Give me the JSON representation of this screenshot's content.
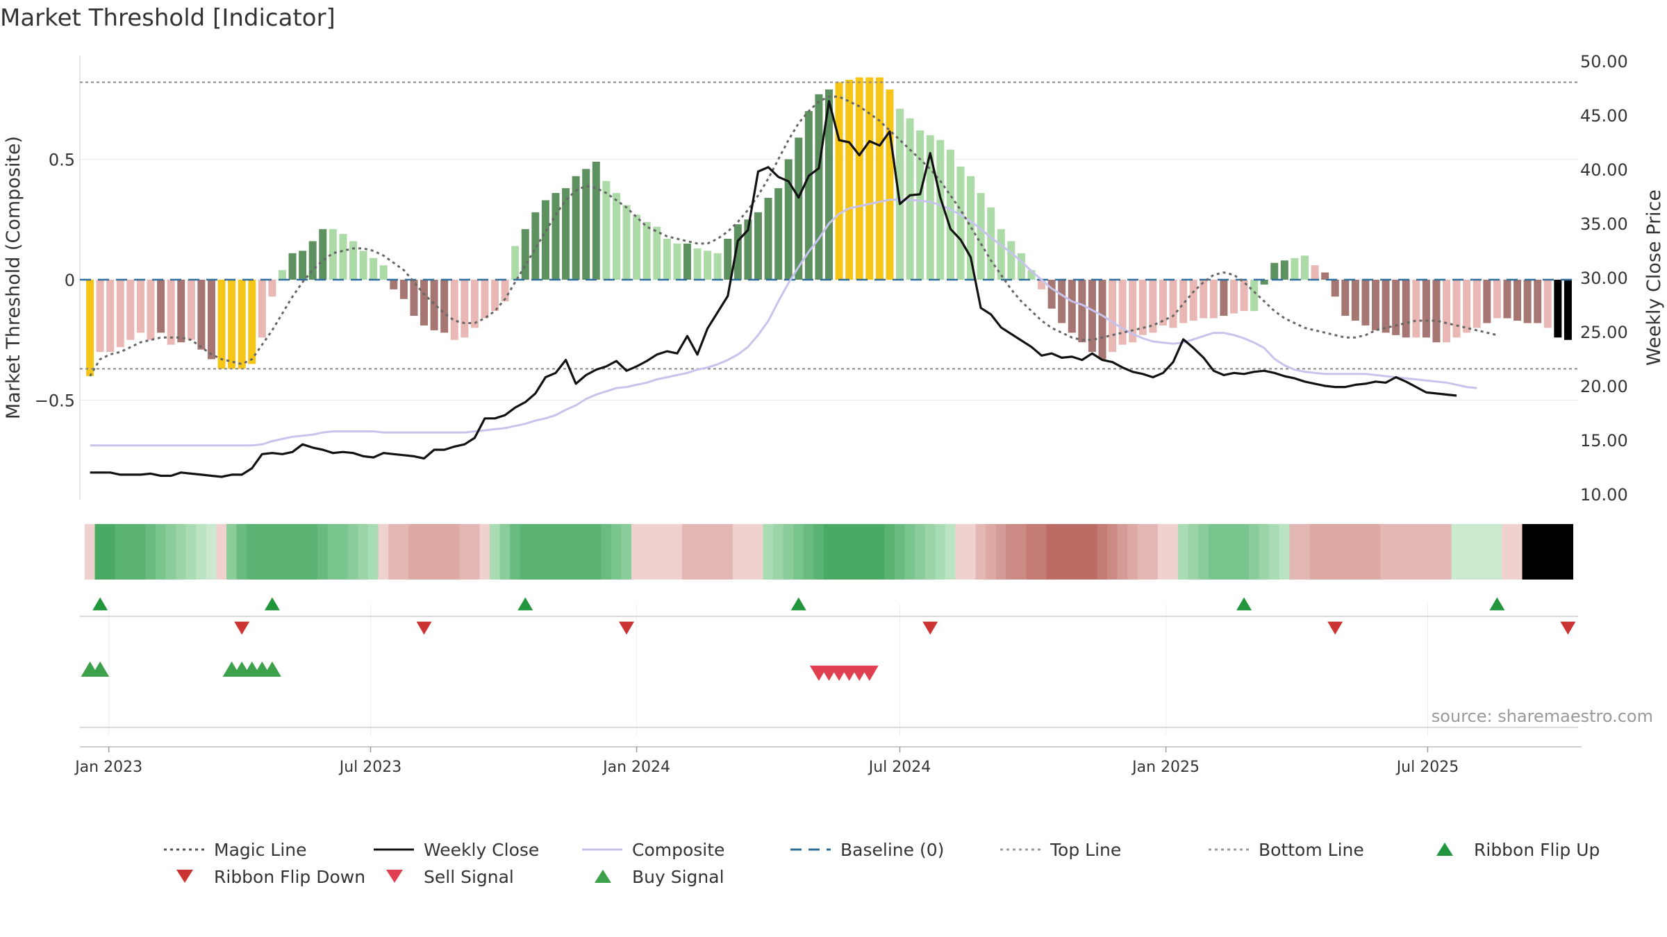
{
  "chart_data": {
    "type": "bar",
    "title": "Market Threshold [Indicator]",
    "ylabel": "Market Threshold (Composite)",
    "y2label": "Weekly Close Price",
    "ylim": [
      -0.93,
      0.93
    ],
    "y2lim": [
      8.0,
      52.0
    ],
    "yticks": [
      -0.5,
      0,
      0.5
    ],
    "ytick_labels": [
      "−0.5",
      "0",
      "0.5"
    ],
    "y2ticks": [
      10,
      15,
      20,
      25,
      30,
      35,
      40,
      45,
      50
    ],
    "y2tick_labels": [
      "10.00",
      "15.00",
      "20.00",
      "25.00",
      "30.00",
      "35.00",
      "40.00",
      "45.00",
      "50.00"
    ],
    "x_start": "2022-12-12",
    "x_end": "2025-10-13",
    "xticks": [
      "2023-01-01",
      "2023-07-01",
      "2024-01-01",
      "2024-07-01",
      "2025-01-01",
      "2025-07-01"
    ],
    "xtick_labels": [
      "Jan 2023",
      "Jul 2023",
      "Jan 2024",
      "Jul 2024",
      "Jan 2025",
      "Jul 2025"
    ],
    "top_line": 0.82,
    "bottom_line": -0.37,
    "baseline": 0,
    "grid": true,
    "legend_position": "bottom",
    "source_note": "source: sharemaestro.com",
    "weeks": [
      "2022-12-19",
      "2022-12-26",
      "2023-01-02",
      "2023-01-09",
      "2023-01-16",
      "2023-01-23",
      "2023-01-30",
      "2023-02-06",
      "2023-02-13",
      "2023-02-20",
      "2023-02-27",
      "2023-03-06",
      "2023-03-13",
      "2023-03-20",
      "2023-03-27",
      "2023-04-03",
      "2023-04-10",
      "2023-04-17",
      "2023-04-24",
      "2023-05-01",
      "2023-05-08",
      "2023-05-15",
      "2023-05-22",
      "2023-05-29",
      "2023-06-05",
      "2023-06-12",
      "2023-06-19",
      "2023-06-26",
      "2023-07-03",
      "2023-07-10",
      "2023-07-17",
      "2023-07-24",
      "2023-07-31",
      "2023-08-07",
      "2023-08-14",
      "2023-08-21",
      "2023-08-28",
      "2023-09-04",
      "2023-09-11",
      "2023-09-18",
      "2023-09-25",
      "2023-10-02",
      "2023-10-09",
      "2023-10-16",
      "2023-10-23",
      "2023-10-30",
      "2023-11-06",
      "2023-11-13",
      "2023-11-20",
      "2023-11-27",
      "2023-12-04",
      "2023-12-11",
      "2023-12-18",
      "2023-12-25",
      "2024-01-01",
      "2024-01-08",
      "2024-01-15",
      "2024-01-22",
      "2024-01-29",
      "2024-02-05",
      "2024-02-12",
      "2024-02-19",
      "2024-02-26",
      "2024-03-04",
      "2024-03-11",
      "2024-03-18",
      "2024-03-25",
      "2024-04-01",
      "2024-04-08",
      "2024-04-15",
      "2024-04-22",
      "2024-04-29",
      "2024-05-06",
      "2024-05-13",
      "2024-05-20",
      "2024-05-27",
      "2024-06-03",
      "2024-06-10",
      "2024-06-17",
      "2024-06-24",
      "2024-07-01",
      "2024-07-08",
      "2024-07-15",
      "2024-07-22",
      "2024-07-29",
      "2024-08-05",
      "2024-08-12",
      "2024-08-19",
      "2024-08-26",
      "2024-09-02",
      "2024-09-09",
      "2024-09-16",
      "2024-09-23",
      "2024-09-30",
      "2024-10-07",
      "2024-10-14",
      "2024-10-21",
      "2024-10-28",
      "2024-11-04",
      "2024-11-11",
      "2024-11-18",
      "2024-11-25",
      "2024-12-02",
      "2024-12-09",
      "2024-12-16",
      "2024-12-23",
      "2024-12-30",
      "2025-01-06",
      "2025-01-13",
      "2025-01-20",
      "2025-01-27",
      "2025-02-03",
      "2025-02-10",
      "2025-02-17",
      "2025-02-24",
      "2025-03-03",
      "2025-03-10",
      "2025-03-17",
      "2025-03-24",
      "2025-03-31",
      "2025-04-07",
      "2025-04-14",
      "2025-04-21",
      "2025-04-28",
      "2025-05-05",
      "2025-05-12",
      "2025-05-19",
      "2025-05-26",
      "2025-06-02",
      "2025-06-09",
      "2025-06-16",
      "2025-06-23",
      "2025-06-30",
      "2025-07-07",
      "2025-07-14",
      "2025-07-21",
      "2025-07-28",
      "2025-08-04",
      "2025-08-11",
      "2025-08-18",
      "2025-08-25",
      "2025-09-01",
      "2025-09-08",
      "2025-09-15",
      "2025-09-22",
      "2025-09-29",
      "2025-10-06"
    ],
    "composite": [
      -0.4,
      -0.3,
      -0.3,
      -0.28,
      -0.25,
      -0.22,
      -0.25,
      -0.22,
      -0.27,
      -0.26,
      -0.25,
      -0.29,
      -0.33,
      -0.37,
      -0.37,
      -0.37,
      -0.35,
      -0.24,
      -0.07,
      0.04,
      0.11,
      0.12,
      0.16,
      0.21,
      0.21,
      0.19,
      0.16,
      0.12,
      0.09,
      0.06,
      -0.04,
      -0.08,
      -0.15,
      -0.19,
      -0.21,
      -0.22,
      -0.25,
      -0.24,
      -0.2,
      -0.16,
      -0.13,
      -0.09,
      0.14,
      0.21,
      0.28,
      0.33,
      0.36,
      0.38,
      0.43,
      0.46,
      0.49,
      0.41,
      0.36,
      0.31,
      0.27,
      0.24,
      0.22,
      0.17,
      0.15,
      0.15,
      0.13,
      0.12,
      0.11,
      0.17,
      0.23,
      0.25,
      0.28,
      0.34,
      0.38,
      0.5,
      0.59,
      0.7,
      0.77,
      0.79,
      0.82,
      0.83,
      0.84,
      0.84,
      0.84,
      0.79,
      0.71,
      0.67,
      0.62,
      0.6,
      0.58,
      0.54,
      0.47,
      0.43,
      0.36,
      0.3,
      0.21,
      0.16,
      0.11,
      0.04,
      -0.04,
      -0.12,
      -0.18,
      -0.22,
      -0.26,
      -0.3,
      -0.33,
      -0.3,
      -0.27,
      -0.26,
      -0.23,
      -0.22,
      -0.19,
      -0.2,
      -0.18,
      -0.17,
      -0.16,
      -0.16,
      -0.15,
      -0.14,
      -0.13,
      -0.13,
      -0.02,
      0.07,
      0.08,
      0.09,
      0.1,
      0.06,
      0.03,
      -0.07,
      -0.15,
      -0.17,
      -0.19,
      -0.21,
      -0.22,
      -0.23,
      -0.24,
      -0.24,
      -0.24,
      -0.26,
      -0.26,
      -0.24,
      -0.22,
      -0.2,
      -0.18,
      -0.16,
      -0.16,
      -0.17,
      -0.18,
      -0.18,
      -0.2,
      -0.24,
      -0.25,
      -0.25
    ],
    "bar_colors": [
      "#f5c518",
      "#eab8b4",
      "#eab8b4",
      "#eab8b4",
      "#eab8b4",
      "#eab8b4",
      "#eab8b4",
      "#a67673",
      "#eab8b4",
      "#a67673",
      "#eab8b4",
      "#a67673",
      "#a67673",
      "#f5c518",
      "#f5c518",
      "#f5c518",
      "#f5c518",
      "#eab8b4",
      "#eab8b4",
      "#addba8",
      "#5e9160",
      "#5e9160",
      "#5e9160",
      "#5e9160",
      "#addba8",
      "#addba8",
      "#addba8",
      "#addba8",
      "#addba8",
      "#addba8",
      "#a67673",
      "#a67673",
      "#a67673",
      "#a67673",
      "#a67673",
      "#a67673",
      "#eab8b4",
      "#eab8b4",
      "#eab8b4",
      "#eab8b4",
      "#eab8b4",
      "#eab8b4",
      "#addba8",
      "#5e9160",
      "#5e9160",
      "#5e9160",
      "#5e9160",
      "#5e9160",
      "#5e9160",
      "#5e9160",
      "#5e9160",
      "#addba8",
      "#addba8",
      "#addba8",
      "#addba8",
      "#addba8",
      "#addba8",
      "#addba8",
      "#addba8",
      "#5e9160",
      "#addba8",
      "#addba8",
      "#addba8",
      "#5e9160",
      "#5e9160",
      "#5e9160",
      "#5e9160",
      "#5e9160",
      "#5e9160",
      "#5e9160",
      "#5e9160",
      "#5e9160",
      "#5e9160",
      "#5e9160",
      "#f5c518",
      "#f5c518",
      "#f5c518",
      "#f5c518",
      "#f5c518",
      "#f5c518",
      "#addba8",
      "#addba8",
      "#addba8",
      "#addba8",
      "#addba8",
      "#addba8",
      "#addba8",
      "#addba8",
      "#addba8",
      "#addba8",
      "#addba8",
      "#addba8",
      "#addba8",
      "#addba8",
      "#eab8b4",
      "#a67673",
      "#a67673",
      "#a67673",
      "#a67673",
      "#a67673",
      "#a67673",
      "#eab8b4",
      "#eab8b4",
      "#eab8b4",
      "#eab8b4",
      "#eab8b4",
      "#eab8b4",
      "#eab8b4",
      "#eab8b4",
      "#eab8b4",
      "#eab8b4",
      "#eab8b4",
      "#a67673",
      "#eab8b4",
      "#eab8b4",
      "#addba8",
      "#5e9160",
      "#5e9160",
      "#5e9160",
      "#addba8",
      "#addba8",
      "#eab8b4",
      "#a67673",
      "#a67673",
      "#a67673",
      "#a67673",
      "#a67673",
      "#a67673",
      "#a67673",
      "#a67673",
      "#a67673",
      "#eab8b4",
      "#a67673",
      "#a67673",
      "#eab8b4",
      "#eab8b4",
      "#eab8b4",
      "#eab8b4",
      "#a67673",
      "#eab8b4",
      "#a67673",
      "#a67673",
      "#a67673",
      "#a67673",
      "#eab8b4"
    ],
    "magic_line": [
      -0.4,
      -0.33,
      -0.31,
      -0.3,
      -0.28,
      -0.26,
      -0.25,
      -0.24,
      -0.24,
      -0.24,
      -0.25,
      -0.28,
      -0.31,
      -0.33,
      -0.34,
      -0.35,
      -0.33,
      -0.27,
      -0.21,
      -0.14,
      -0.07,
      -0.01,
      0.04,
      0.08,
      0.11,
      0.12,
      0.13,
      0.13,
      0.12,
      0.1,
      0.07,
      0.04,
      -0.01,
      -0.06,
      -0.1,
      -0.14,
      -0.17,
      -0.18,
      -0.18,
      -0.16,
      -0.13,
      -0.08,
      -0.01,
      0.06,
      0.13,
      0.2,
      0.27,
      0.33,
      0.37,
      0.39,
      0.38,
      0.36,
      0.33,
      0.3,
      0.26,
      0.22,
      0.2,
      0.18,
      0.17,
      0.16,
      0.15,
      0.15,
      0.17,
      0.2,
      0.24,
      0.29,
      0.35,
      0.42,
      0.5,
      0.58,
      0.65,
      0.7,
      0.74,
      0.76,
      0.76,
      0.74,
      0.72,
      0.69,
      0.66,
      0.62,
      0.58,
      0.54,
      0.5,
      0.46,
      0.41,
      0.35,
      0.29,
      0.22,
      0.15,
      0.08,
      0.02,
      -0.04,
      -0.09,
      -0.13,
      -0.17,
      -0.2,
      -0.22,
      -0.24,
      -0.25,
      -0.25,
      -0.24,
      -0.23,
      -0.22,
      -0.21,
      -0.2,
      -0.19,
      -0.17,
      -0.15,
      -0.1,
      -0.05,
      -0.01,
      0.02,
      0.03,
      0.02,
      -0.01,
      -0.05,
      -0.09,
      -0.13,
      -0.16,
      -0.18,
      -0.2,
      -0.21,
      -0.22,
      -0.23,
      -0.24,
      -0.24,
      -0.23,
      -0.21,
      -0.2,
      -0.19,
      -0.18,
      -0.17,
      -0.17,
      -0.17,
      -0.18,
      -0.19,
      -0.2,
      -0.21,
      -0.22,
      -0.23
    ],
    "composite_line": [
      14.5,
      14.5,
      14.5,
      14.5,
      14.5,
      14.5,
      14.5,
      14.5,
      14.5,
      14.5,
      14.5,
      14.5,
      14.5,
      14.5,
      14.5,
      14.5,
      14.5,
      14.6,
      14.9,
      15.1,
      15.3,
      15.4,
      15.5,
      15.7,
      15.8,
      15.8,
      15.8,
      15.8,
      15.8,
      15.7,
      15.7,
      15.7,
      15.7,
      15.7,
      15.7,
      15.7,
      15.7,
      15.7,
      15.8,
      15.9,
      16.0,
      16.1,
      16.3,
      16.5,
      16.8,
      17.0,
      17.3,
      17.8,
      18.2,
      18.8,
      19.2,
      19.5,
      19.8,
      19.9,
      20.1,
      20.3,
      20.6,
      20.8,
      21.0,
      21.2,
      21.5,
      21.7,
      22.0,
      22.4,
      22.9,
      23.6,
      24.7,
      26.0,
      27.8,
      29.5,
      31.0,
      32.4,
      33.6,
      35.0,
      35.9,
      36.4,
      36.6,
      36.8,
      37.0,
      37.2,
      37.2,
      37.2,
      37.1,
      37.0,
      36.7,
      36.3,
      35.8,
      35.2,
      34.5,
      33.7,
      33.0,
      32.3,
      31.5,
      30.6,
      29.8,
      29.0,
      28.4,
      27.8,
      27.5,
      27.0,
      26.5,
      25.9,
      25.3,
      24.8,
      24.4,
      24.1,
      24.0,
      23.9,
      24.0,
      24.3,
      24.6,
      24.9,
      24.9,
      24.7,
      24.4,
      24.0,
      23.5,
      22.5,
      21.9,
      21.5,
      21.3,
      21.2,
      21.1,
      21.1,
      21.1,
      21.1,
      21.1,
      21.0,
      20.9,
      20.8,
      20.7,
      20.6,
      20.5,
      20.4,
      20.3,
      20.1,
      19.9,
      19.8
    ],
    "weekly_close": [
      12.0,
      12.0,
      12.0,
      11.8,
      11.8,
      11.8,
      11.9,
      11.7,
      11.7,
      12.0,
      11.9,
      11.8,
      11.7,
      11.6,
      11.8,
      11.8,
      12.4,
      13.7,
      13.8,
      13.7,
      13.9,
      14.6,
      14.3,
      14.1,
      13.8,
      13.9,
      13.8,
      13.5,
      13.4,
      13.8,
      13.7,
      13.6,
      13.5,
      13.3,
      14.1,
      14.1,
      14.4,
      14.6,
      15.2,
      17.0,
      17.0,
      17.3,
      18.0,
      18.5,
      19.3,
      20.8,
      21.2,
      22.4,
      20.2,
      21.0,
      21.5,
      21.8,
      22.3,
      21.4,
      21.8,
      22.3,
      22.9,
      23.2,
      23.0,
      24.6,
      22.9,
      25.3,
      26.8,
      28.3,
      33.4,
      34.4,
      39.8,
      40.2,
      39.3,
      38.9,
      37.4,
      39.4,
      40.1,
      46.3,
      42.7,
      42.5,
      41.3,
      42.6,
      42.2,
      43.5,
      36.8,
      37.6,
      37.7,
      41.5,
      37.4,
      34.5,
      33.5,
      31.9,
      27.2,
      26.6,
      25.4,
      24.8,
      24.2,
      23.6,
      22.8,
      23.0,
      22.6,
      22.7,
      22.4,
      23.0,
      22.4,
      22.2,
      21.7,
      21.3,
      21.1,
      20.8,
      21.2,
      22.2,
      24.3,
      23.5,
      22.6,
      21.4,
      21.0,
      21.2,
      21.1,
      21.3,
      21.4,
      21.2,
      20.9,
      20.7,
      20.4,
      20.2,
      20.0,
      19.9,
      19.9,
      20.1,
      20.2,
      20.4,
      20.3,
      20.8,
      20.4,
      19.9,
      19.4,
      19.3,
      19.2,
      19.1
    ],
    "ribbon_colors": [
      "#efd2d0",
      "#4aaa63",
      "#4aaa63",
      "#5ab373",
      "#5ab373",
      "#5ab373",
      "#6abb80",
      "#7ac48d",
      "#8acc9a",
      "#9ad4a7",
      "#aadcb4",
      "#bae3c1",
      "#cae9ce",
      "#efd2d0",
      "#8acc9a",
      "#6abb80",
      "#5ab373",
      "#5ab373",
      "#5ab373",
      "#5ab373",
      "#5ab373",
      "#5ab373",
      "#5ab373",
      "#6abb80",
      "#7ac48d",
      "#7ac48d",
      "#8acc9a",
      "#9ad4a7",
      "#aadcb4",
      "#efd2d0",
      "#e3b8b4",
      "#e3b8b4",
      "#dca9a5",
      "#dca9a5",
      "#dca9a5",
      "#dca9a5",
      "#dca9a5",
      "#e3b8b4",
      "#e3b8b4",
      "#efd2d0",
      "#aadcb4",
      "#8acc9a",
      "#6abb80",
      "#5ab373",
      "#5ab373",
      "#5ab373",
      "#5ab373",
      "#5ab373",
      "#5ab373",
      "#5ab373",
      "#5ab373",
      "#6abb80",
      "#7ac48d",
      "#8acc9a",
      "#efd2d0",
      "#efd2d0",
      "#efd2d0",
      "#efd2d0",
      "#efd2d0",
      "#e3b8b4",
      "#e3b8b4",
      "#e3b8b4",
      "#e3b8b4",
      "#e3b8b4",
      "#efd2d0",
      "#efd2d0",
      "#efd2d0",
      "#aadcb4",
      "#9ad4a7",
      "#8acc9a",
      "#7ac48d",
      "#6abb80",
      "#5ab373",
      "#4aaa63",
      "#4aaa63",
      "#4aaa63",
      "#4aaa63",
      "#4aaa63",
      "#4aaa63",
      "#5ab373",
      "#6abb80",
      "#7ac48d",
      "#8acc9a",
      "#9ad4a7",
      "#aadcb4",
      "#bae3c1",
      "#efd2d0",
      "#efd2d0",
      "#e3b8b4",
      "#dca9a5",
      "#d49a95",
      "#cc8a85",
      "#cc8a85",
      "#c47a75",
      "#c47a75",
      "#bc6b65",
      "#bc6b65",
      "#bc6b65",
      "#bc6b65",
      "#bc6b65",
      "#c47a75",
      "#cc8a85",
      "#d49a95",
      "#dca9a5",
      "#e3b8b4",
      "#e3b8b4",
      "#efd2d0",
      "#efd2d0",
      "#aadcb4",
      "#9ad4a7",
      "#8acc9a",
      "#7ac48d",
      "#7ac48d",
      "#7ac48d",
      "#7ac48d",
      "#8acc9a",
      "#9ad4a7",
      "#aadcb4",
      "#bae3c1",
      "#e3b8b4",
      "#e3b8b4",
      "#dca9a5",
      "#dca9a5",
      "#dca9a5",
      "#dca9a5",
      "#dca9a5",
      "#dca9a5",
      "#dca9a5",
      "#e3b8b4",
      "#e3b8b4",
      "#e3b8b4",
      "#e3b8b4",
      "#e3b8b4",
      "#e3b8b4",
      "#e3b8b4",
      "#cae9ce",
      "#cae9ce",
      "#cae9ce",
      "#cae9ce",
      "#cae9ce",
      "#efd2d0",
      "#efd2d0"
    ],
    "ribbon_flip_up": [
      "2022-12-26",
      "2023-04-24",
      "2023-10-16",
      "2024-04-22",
      "2025-02-24",
      "2025-08-18"
    ],
    "ribbon_flip_down": [
      "2023-04-03",
      "2023-08-07",
      "2023-12-25",
      "2024-07-22",
      "2025-04-28",
      "2025-10-06"
    ],
    "buy_signal": [
      "2022-12-19",
      "2022-12-26",
      "2023-03-27",
      "2023-04-03",
      "2023-04-10",
      "2023-04-17",
      "2023-04-24"
    ],
    "sell_signal": [
      "2024-05-06",
      "2024-05-13",
      "2024-05-20",
      "2024-05-27",
      "2024-06-03",
      "2024-06-10"
    ],
    "legend": [
      {
        "label": "Magic Line",
        "kind": "dotted",
        "color": "#555555"
      },
      {
        "label": "Weekly Close",
        "kind": "solid",
        "color": "#111111"
      },
      {
        "label": "Composite",
        "kind": "solid",
        "color": "#c7c3ec"
      },
      {
        "label": "Baseline (0)",
        "kind": "dashed",
        "color": "#2f6e9a"
      },
      {
        "label": "Top Line",
        "kind": "dotted",
        "color": "#999999"
      },
      {
        "label": "Bottom Line",
        "kind": "dotted",
        "color": "#999999"
      },
      {
        "label": "Ribbon Flip Up",
        "kind": "tri-up",
        "color": "#22963c"
      },
      {
        "label": "Ribbon Flip Down",
        "kind": "tri-down",
        "color": "#cc3333"
      },
      {
        "label": "Sell Signal",
        "kind": "tri-down",
        "color": "#e04050"
      },
      {
        "label": "Buy Signal",
        "kind": "tri-up",
        "color": "#3da04a"
      }
    ]
  }
}
